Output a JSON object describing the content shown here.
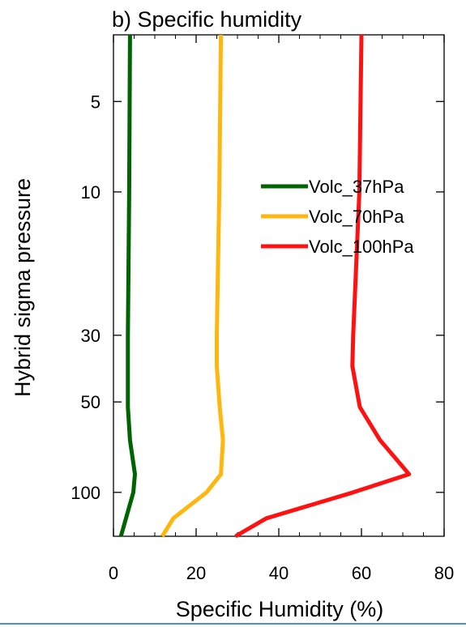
{
  "chart_data": {
    "type": "line",
    "title": "b) Specific humidity",
    "xlabel": "Specific Humidity (%)",
    "ylabel": "Hybrid sigma pressure",
    "xlim": [
      0,
      80
    ],
    "ylim": [
      3,
      140
    ],
    "y_scale": "log",
    "y_inverted": true,
    "x_ticks": [
      "0",
      "20",
      "40",
      "60",
      "80"
    ],
    "y_ticks": [
      "5",
      "10",
      "30",
      "50",
      "100"
    ],
    "legend_placement": "center-right",
    "series": [
      {
        "name": "Volc_37hPa",
        "color": "#006400",
        "points": [
          [
            4.0,
            3.0
          ],
          [
            3.8,
            10
          ],
          [
            3.5,
            30
          ],
          [
            3.5,
            38
          ],
          [
            3.5,
            52
          ],
          [
            4.0,
            67
          ],
          [
            5.2,
            87
          ],
          [
            4.8,
            100
          ],
          [
            1.8,
            140
          ]
        ]
      },
      {
        "name": "Volc_70hPa",
        "color": "#ffb70f",
        "points": [
          [
            26.0,
            3.0
          ],
          [
            25.6,
            10
          ],
          [
            25.0,
            30
          ],
          [
            25.0,
            38
          ],
          [
            25.7,
            52
          ],
          [
            26.5,
            67
          ],
          [
            26.0,
            87
          ],
          [
            22.5,
            100
          ],
          [
            14.5,
            122
          ],
          [
            11.8,
            140
          ]
        ]
      },
      {
        "name": "Volc_100hPa",
        "color": "#ff1111",
        "points": [
          [
            60.0,
            3.0
          ],
          [
            59.5,
            10
          ],
          [
            58.0,
            30
          ],
          [
            57.8,
            38
          ],
          [
            59.6,
            52
          ],
          [
            64.5,
            67
          ],
          [
            71.5,
            87
          ],
          [
            58.0,
            100
          ],
          [
            37.0,
            122
          ],
          [
            29.5,
            140
          ]
        ]
      }
    ]
  }
}
